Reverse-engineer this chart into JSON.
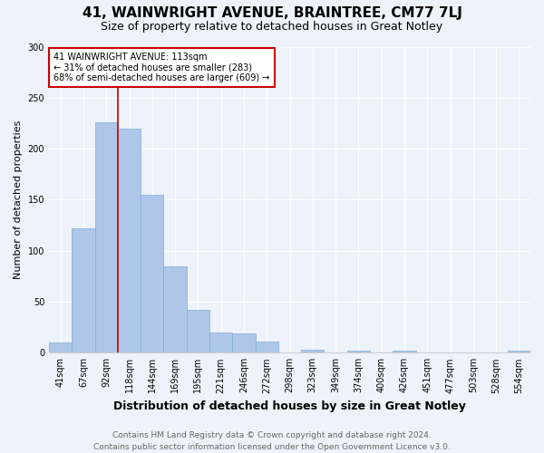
{
  "title": "41, WAINWRIGHT AVENUE, BRAINTREE, CM77 7LJ",
  "subtitle": "Size of property relative to detached houses in Great Notley",
  "xlabel": "Distribution of detached houses by size in Great Notley",
  "ylabel": "Number of detached properties",
  "footer_line1": "Contains HM Land Registry data © Crown copyright and database right 2024.",
  "footer_line2": "Contains public sector information licensed under the Open Government Licence v3.0.",
  "bin_labels": [
    "41sqm",
    "67sqm",
    "92sqm",
    "118sqm",
    "144sqm",
    "169sqm",
    "195sqm",
    "221sqm",
    "246sqm",
    "272sqm",
    "298sqm",
    "323sqm",
    "349sqm",
    "374sqm",
    "400sqm",
    "426sqm",
    "451sqm",
    "477sqm",
    "503sqm",
    "528sqm",
    "554sqm"
  ],
  "bar_values": [
    10,
    122,
    226,
    220,
    155,
    85,
    42,
    20,
    19,
    11,
    0,
    3,
    0,
    2,
    0,
    2,
    0,
    0,
    0,
    0,
    2
  ],
  "bar_color": "#aec6e8",
  "bar_edge_color": "#7aafd4",
  "property_line_label": "41 WAINWRIGHT AVENUE: 113sqm",
  "annotation_line2": "← 31% of detached houses are smaller (283)",
  "annotation_line3": "68% of semi-detached houses are larger (609) →",
  "annotation_box_color": "#ffffff",
  "annotation_box_edge": "#cc0000",
  "vline_color": "#cc0000",
  "vline_x": 2.5,
  "ylim": [
    0,
    300
  ],
  "yticks": [
    0,
    50,
    100,
    150,
    200,
    250,
    300
  ],
  "background_color": "#eef2fa",
  "plot_background": "#eef2fa",
  "grid_color": "#ffffff",
  "title_fontsize": 11,
  "subtitle_fontsize": 9,
  "axis_label_fontsize": 8,
  "tick_fontsize": 7,
  "footer_fontsize": 6.5
}
